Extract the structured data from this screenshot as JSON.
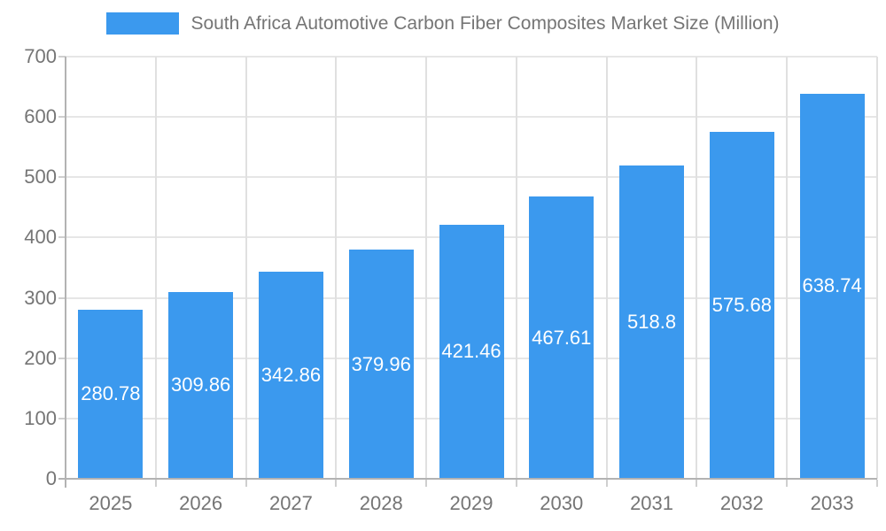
{
  "chart_data": {
    "type": "bar",
    "title": "South Africa Automotive Carbon Fiber Composites Market Size (Million)",
    "categories": [
      "2025",
      "2026",
      "2027",
      "2028",
      "2029",
      "2030",
      "2031",
      "2032",
      "2033"
    ],
    "values": [
      280.78,
      309.86,
      342.86,
      379.96,
      421.46,
      467.61,
      518.8,
      575.68,
      638.74
    ],
    "value_labels": [
      "280.78",
      "309.86",
      "342.86",
      "379.96",
      "421.46",
      "467.61",
      "518.8",
      "575.68",
      "638.74"
    ],
    "xlabel": "",
    "ylabel": "",
    "ylim": [
      0,
      700
    ],
    "yticks": [
      0,
      100,
      200,
      300,
      400,
      500,
      600,
      700
    ],
    "grid": "both",
    "legend_position": "top-center",
    "colors": {
      "bar": "#3B99EE",
      "bar_label_text": "#FFFFFF",
      "axis_text": "#757575",
      "title_text": "#757575",
      "gridline": "#E6E6E6",
      "axis_line": "#B3B3B3",
      "background": "#FFFFFF"
    }
  }
}
